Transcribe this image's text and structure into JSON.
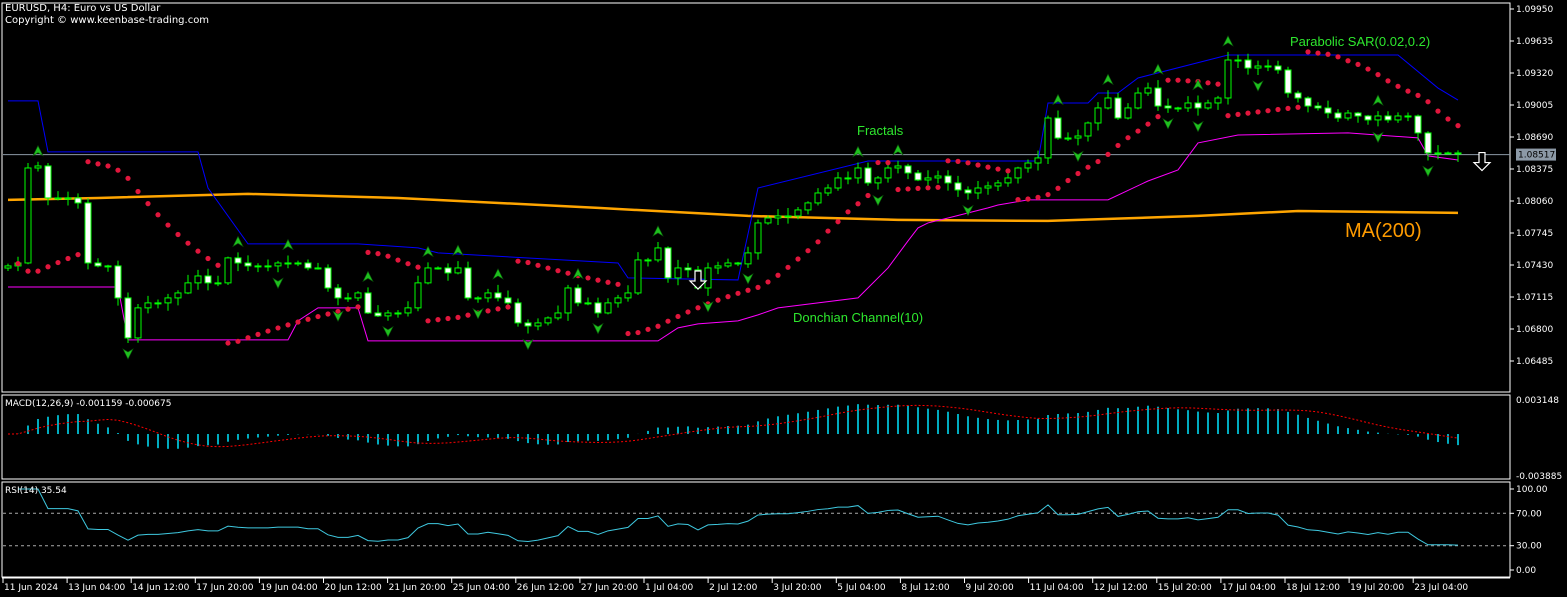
{
  "header": {
    "title": "EURUSD, H4:  Euro vs US Dollar",
    "copyright": "Copyright © www.keenbase-trading.com"
  },
  "annotations": {
    "fractals": "Fractals",
    "sar": "Parabolic SAR(0.02,0.2)",
    "donchian": "Donchian Channel(10)",
    "ma": "MA(200)"
  },
  "macd_label": "MACD(12,26,9) -0.001159 -0.000675",
  "rsi_label": "RSI(14) 35.54",
  "colors": {
    "background": "#000000",
    "candle": "#00ff00",
    "bear_body": "#ffffff",
    "sar": "#e0163c",
    "donchian_upper": "#0000ff",
    "donchian_lower": "#ff00ff",
    "ma": "#ffa500",
    "macd_hist": "#00e5ff",
    "macd_signal": "#ff0000",
    "rsi": "#3fc9e0",
    "current_price_line": "#8c99a6",
    "fractal": "#1fbf1f"
  },
  "chart_data": {
    "type": "candlestick",
    "symbol": "EURUSD",
    "timeframe": "H4",
    "ylim": [
      1.064,
      1.1
    ],
    "yticks": [
      "1.09950",
      "1.09635",
      "1.09320",
      "1.09005",
      "1.08690",
      "1.08375",
      "1.08060",
      "1.07745",
      "1.07430",
      "1.07115",
      "1.06800",
      "1.06485"
    ],
    "current_price": "1.08517",
    "xticks": [
      "11 Jun 2024",
      "13 Jun 04:00",
      "14 Jun 12:00",
      "17 Jun 20:00",
      "19 Jun 04:00",
      "20 Jun 12:00",
      "21 Jun 20:00",
      "25 Jun 04:00",
      "26 Jun 12:00",
      "27 Jun 20:00",
      "1 Jul 04:00",
      "2 Jul 12:00",
      "3 Jul 20:00",
      "5 Jul 04:00",
      "8 Jul 12:00",
      "9 Jul 20:00",
      "11 Jul 04:00",
      "12 Jul 12:00",
      "15 Jul 20:00",
      "17 Jul 04:00",
      "18 Jul 12:00",
      "19 Jul 20:00",
      "23 Jul 04:00"
    ],
    "first_open": 1.074,
    "closes": [
      1.07421,
      1.0745,
      1.08385,
      1.08405,
      1.0809,
      1.0809,
      1.0809,
      1.08041,
      1.0745,
      1.07421,
      1.07421,
      1.07106,
      1.06712,
      1.07008,
      1.07057,
      1.07057,
      1.07106,
      1.07155,
      1.07254,
      1.07322,
      1.07254,
      1.07254,
      1.075,
      1.0745,
      1.07421,
      1.07421,
      1.07421,
      1.0745,
      1.0745,
      1.0745,
      1.07401,
      1.07401,
      1.07204,
      1.07106,
      1.07106,
      1.07155,
      1.06958,
      1.06929,
      1.06958,
      1.06958,
      1.07008,
      1.07254,
      1.07401,
      1.07401,
      1.07352,
      1.07401,
      1.07106,
      1.07106,
      1.07155,
      1.07106,
      1.07057,
      1.0686,
      1.0683,
      1.0686,
      1.06909,
      1.06958,
      1.07204,
      1.07057,
      1.07057,
      1.06958,
      1.07057,
      1.07106,
      1.07155,
      1.0748,
      1.0748,
      1.07598,
      1.07303,
      1.07401,
      1.07382,
      1.07204,
      1.07401,
      1.07421,
      1.0745,
      1.07441,
      1.07549,
      1.07844,
      1.07893,
      1.07913,
      1.07913,
      1.07972,
      1.08041,
      1.08139,
      1.08188,
      1.08287,
      1.08287,
      1.08385,
      1.08238,
      1.08287,
      1.08385,
      1.08405,
      1.08336,
      1.08267,
      1.08287,
      1.08306,
      1.08238,
      1.08169,
      1.08139,
      1.08188,
      1.08208,
      1.08238,
      1.08287,
      1.08385,
      1.08434,
      1.08484,
      1.08877,
      1.0868,
      1.0868,
      1.087,
      1.08828,
      1.08976,
      1.09074,
      1.08877,
      1.08976,
      1.09123,
      1.09172,
      1.08995,
      1.08976,
      1.08976,
      1.09025,
      1.08976,
      1.09025,
      1.09074,
      1.09448,
      1.09448,
      1.09369,
      1.09389,
      1.09389,
      1.0935,
      1.09123,
      1.09074,
      1.08995,
      1.08976,
      1.08926,
      1.08877,
      1.08926,
      1.08897,
      1.08858,
      1.08897,
      1.08858,
      1.08897,
      1.08897,
      1.0873,
      1.08533,
      1.08533,
      1.08533,
      1.08523
    ],
    "ma200": [
      [
        0,
        1.08071
      ],
      [
        9,
        1.0809
      ],
      [
        24,
        1.0813
      ],
      [
        39,
        1.0809
      ],
      [
        59,
        1.07992
      ],
      [
        74,
        1.07913
      ],
      [
        89,
        1.07874
      ],
      [
        104,
        1.07864
      ],
      [
        119,
        1.07913
      ],
      [
        129,
        1.07962
      ],
      [
        145,
        1.07943
      ]
    ],
    "donchian_upper": [
      [
        0,
        1.09045
      ],
      [
        3,
        1.09045
      ],
      [
        4,
        1.08543
      ],
      [
        19,
        1.08543
      ],
      [
        20,
        1.08188
      ],
      [
        24,
        1.07638
      ],
      [
        35,
        1.07638
      ],
      [
        41,
        1.07598
      ],
      [
        43,
        1.07549
      ],
      [
        61,
        1.0745
      ],
      [
        62,
        1.07303
      ],
      [
        73,
        1.07283
      ],
      [
        75,
        1.08188
      ],
      [
        86,
        1.08454
      ],
      [
        103,
        1.08454
      ],
      [
        104,
        1.09025
      ],
      [
        108,
        1.09025
      ],
      [
        109,
        1.09123
      ],
      [
        111,
        1.09123
      ],
      [
        113,
        1.09271
      ],
      [
        122,
        1.09497
      ],
      [
        139,
        1.09497
      ],
      [
        143,
        1.09172
      ],
      [
        145,
        1.09054
      ]
    ],
    "donchian_lower": [
      [
        0,
        1.07214
      ],
      [
        11,
        1.07214
      ],
      [
        12,
        1.06693
      ],
      [
        28,
        1.06693
      ],
      [
        29,
        1.0688
      ],
      [
        31,
        1.07008
      ],
      [
        35,
        1.07008
      ],
      [
        36,
        1.06683
      ],
      [
        65,
        1.06683
      ],
      [
        67,
        1.06811
      ],
      [
        69,
        1.0685
      ],
      [
        73,
        1.0688
      ],
      [
        75,
        1.06939
      ],
      [
        77,
        1.07008
      ],
      [
        85,
        1.07106
      ],
      [
        88,
        1.07401
      ],
      [
        90,
        1.07667
      ],
      [
        91,
        1.07795
      ],
      [
        92,
        1.07844
      ],
      [
        94,
        1.07893
      ],
      [
        98,
        1.07992
      ],
      [
        99,
        1.08021
      ],
      [
        102,
        1.08071
      ],
      [
        110,
        1.08071
      ],
      [
        114,
        1.08257
      ],
      [
        117,
        1.08366
      ],
      [
        119,
        1.08632
      ],
      [
        123,
        1.0871
      ],
      [
        134,
        1.0873
      ],
      [
        141,
        1.08681
      ],
      [
        142,
        1.08504
      ],
      [
        145,
        1.08464
      ]
    ],
    "sell_signals": [
      69,
      146
    ],
    "macd": {
      "ylim": [
        -0.003885,
        0.003148
      ],
      "ticks": [
        "0.003148",
        "-0.003885"
      ]
    },
    "rsi": {
      "ylim": [
        0,
        100
      ],
      "levels": [
        30,
        70
      ],
      "ticks": [
        "100.00",
        "70.00",
        "30.00",
        "0.00"
      ]
    }
  }
}
